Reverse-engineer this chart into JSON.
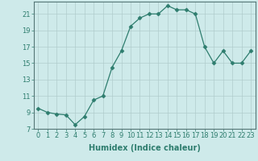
{
  "x": [
    0,
    1,
    2,
    3,
    4,
    5,
    6,
    7,
    8,
    9,
    10,
    11,
    12,
    13,
    14,
    15,
    16,
    17,
    18,
    19,
    20,
    21,
    22,
    23
  ],
  "y": [
    9.5,
    9.0,
    8.8,
    8.7,
    7.5,
    8.5,
    10.5,
    11.0,
    14.5,
    16.5,
    19.5,
    20.5,
    21.0,
    21.0,
    22.0,
    21.5,
    21.5,
    21.0,
    17.0,
    15.0,
    16.5,
    15.0,
    15.0,
    16.5
  ],
  "xlabel": "Humidex (Indice chaleur)",
  "xlim": [
    -0.5,
    23.5
  ],
  "ylim": [
    7,
    22.5
  ],
  "yticks": [
    7,
    9,
    11,
    13,
    15,
    17,
    19,
    21
  ],
  "xticks": [
    0,
    1,
    2,
    3,
    4,
    5,
    6,
    7,
    8,
    9,
    10,
    11,
    12,
    13,
    14,
    15,
    16,
    17,
    18,
    19,
    20,
    21,
    22,
    23
  ],
  "line_color": "#2e7d6e",
  "marker": "D",
  "marker_size": 2.5,
  "bg_color": "#ceeaea",
  "grid_color": "#b0cccc",
  "axis_fontsize": 7,
  "tick_fontsize": 6
}
